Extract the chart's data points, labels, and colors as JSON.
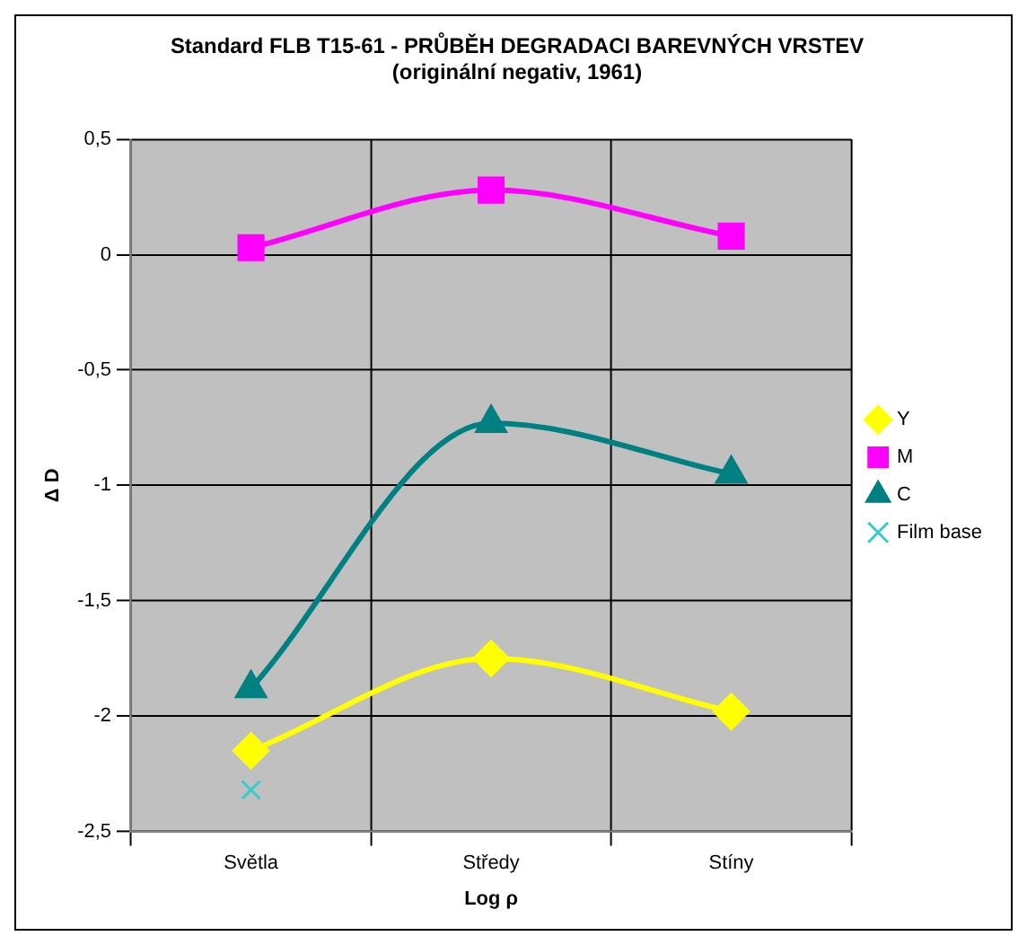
{
  "chart_data": {
    "type": "line",
    "title": [
      "Standard FLB T15-61 - PRŮBĚH DEGRADACI BAREVNÝCH VRSTEV",
      "(originální negativ, 1961)"
    ],
    "xlabel": "Log ρ",
    "ylabel": "Δ D",
    "categories": [
      "Světla",
      "Středy",
      "Stíny"
    ],
    "series": [
      {
        "name": "Y",
        "color": "#ffff00",
        "marker": "diamond",
        "values": [
          -2.15,
          -1.75,
          -1.98
        ]
      },
      {
        "name": "M",
        "color": "#ff00ff",
        "marker": "square",
        "values": [
          0.03,
          0.28,
          0.08
        ]
      },
      {
        "name": "C",
        "color": "#008080",
        "marker": "triangle",
        "values": [
          -1.88,
          -0.73,
          -0.95
        ]
      },
      {
        "name": "Film base",
        "color": "#33cccc",
        "marker": "cross",
        "values": [
          -2.32,
          null,
          null
        ]
      }
    ],
    "ylim": [
      -2.5,
      0.5
    ],
    "yticks": [
      {
        "value": -2.5,
        "label": "-2,5"
      },
      {
        "value": -2,
        "label": "-2"
      },
      {
        "value": -1.5,
        "label": "-1,5"
      },
      {
        "value": -1,
        "label": "-1"
      },
      {
        "value": -0.5,
        "label": "-0,5"
      },
      {
        "value": 0,
        "label": "0"
      },
      {
        "value": 0.5,
        "label": "0,5"
      }
    ],
    "grid": true,
    "legend": "right"
  }
}
